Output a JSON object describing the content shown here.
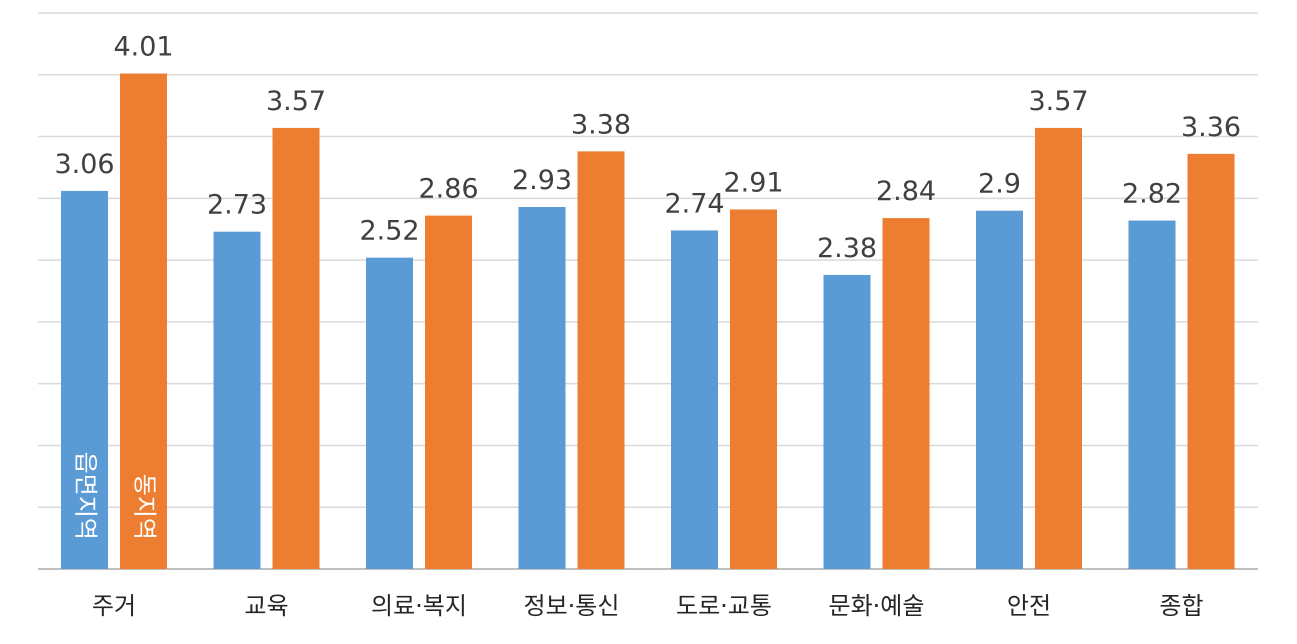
{
  "chart_data": {
    "type": "bar",
    "categories": [
      "주거",
      "교육",
      "의료·복지",
      "정보·통신",
      "도로·교통",
      "문화·예술",
      "안전",
      "종합"
    ],
    "series": [
      {
        "name": "읍면지역",
        "values": [
          3.06,
          2.73,
          2.52,
          2.93,
          2.74,
          2.38,
          2.9,
          2.82
        ]
      },
      {
        "name": "동지역",
        "values": [
          4.01,
          3.57,
          2.86,
          3.38,
          2.91,
          2.84,
          3.57,
          3.36
        ]
      }
    ],
    "value_labels": {
      "읍면지역": [
        "3.06",
        "2.73",
        "2.52",
        "2.93",
        "2.74",
        "2.38",
        "2.9",
        "2.82"
      ],
      "동지역": [
        "4.01",
        "3.57",
        "2.86",
        "3.38",
        "2.91",
        "2.84",
        "3.57",
        "3.36"
      ]
    },
    "ylim": [
      0,
      4.5
    ],
    "grid": true,
    "legend": "inside-first-bars-vertical",
    "colors": {
      "읍면지역": "#5b9bd5",
      "동지역": "#ed7d31"
    }
  }
}
